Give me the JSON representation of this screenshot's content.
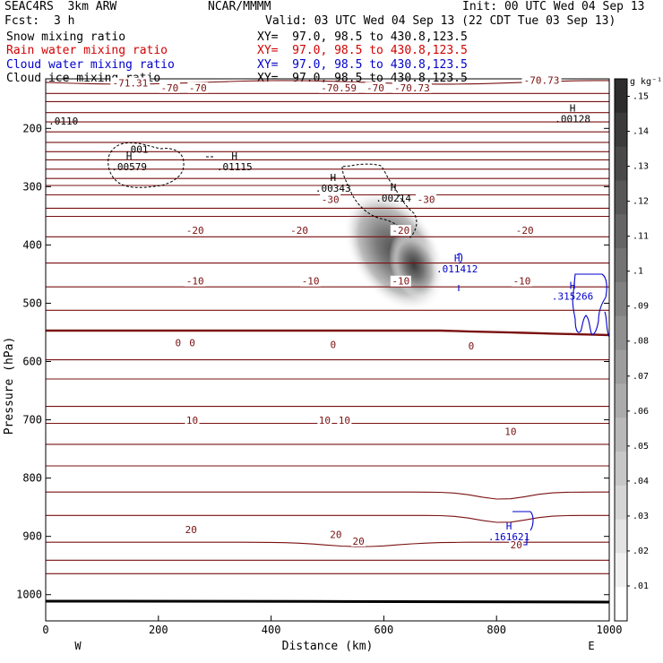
{
  "header": {
    "experiment": "SEAC4RS  3km ARW",
    "center": "NCAR/MMMM",
    "init": "Init: 00 UTC Wed 04 Sep 13",
    "fcst_label": "Fcst:",
    "fcst_value": "3 h",
    "valid": "Valid: 03 UTC Wed 04 Sep 13 (22 CDT Tue 03 Sep 13)"
  },
  "fields": [
    {
      "name": "Snow mixing ratio",
      "xy": "XY=  97.0, 98.5 to 430.8,123.5",
      "color": "#000000"
    },
    {
      "name": "Rain water mixing ratio",
      "xy": "XY=  97.0, 98.5 to 430.8,123.5",
      "color": "#d40000"
    },
    {
      "name": "Cloud water mixing ratio",
      "xy": "XY=  97.0, 98.5 to 430.8,123.5",
      "color": "#0000cc"
    },
    {
      "name": "Cloud ice mixing ratio",
      "xy": "XY=  97.0, 98.5 to 430.8,123.5",
      "color": "#000000"
    }
  ],
  "chart_data": {
    "type": "contour cross-section",
    "xlabel": "Distance (km)",
    "ylabel": "Pressure (hPa)",
    "xlim": [
      0,
      1000
    ],
    "ylim": [
      1045,
      115
    ],
    "x_ticks": [
      "0",
      "200",
      "400",
      "600",
      "800",
      "1000"
    ],
    "y_ticks": [
      "200",
      "300",
      "400",
      "500",
      "600",
      "700",
      "800",
      "900",
      "1000"
    ],
    "direction_labels": {
      "left": "W",
      "right": "E"
    },
    "colorbar": {
      "units": "g kg⁻¹",
      "tick_labels": [
        ".15",
        ".14",
        ".13",
        ".12",
        ".11",
        ".1",
        ".09",
        ".08",
        ".07",
        ".06",
        ".05",
        ".04",
        ".03",
        ".02",
        ".01"
      ],
      "range": [
        0,
        0.155
      ]
    },
    "temperature_contours": {
      "color": "#7a1010",
      "zero_color": "#7a1010",
      "labels": [
        {
          "text": "-71.31",
          "x": 150,
          "p": 122
        },
        {
          "text": "-70",
          "x": 220,
          "p": 130
        },
        {
          "text": "-70",
          "x": 270,
          "p": 130
        },
        {
          "text": "-70.59",
          "x": 520,
          "p": 130
        },
        {
          "text": "-70",
          "x": 585,
          "p": 130
        },
        {
          "text": "-70.73",
          "x": 650,
          "p": 130
        },
        {
          "text": "-70.73",
          "x": 880,
          "p": 117
        },
        {
          "text": "-30",
          "x": 505,
          "p": 322
        },
        {
          "text": "-30",
          "x": 675,
          "p": 322
        },
        {
          "text": "-20",
          "x": 265,
          "p": 375
        },
        {
          "text": "-20",
          "x": 450,
          "p": 375
        },
        {
          "text": "-20",
          "x": 630,
          "p": 375
        },
        {
          "text": "-20",
          "x": 850,
          "p": 375
        },
        {
          "text": "-10",
          "x": 265,
          "p": 462
        },
        {
          "text": "-10",
          "x": 470,
          "p": 462
        },
        {
          "text": "-10",
          "x": 630,
          "p": 462
        },
        {
          "text": "-10",
          "x": 845,
          "p": 462
        },
        {
          "text": "0",
          "x": 235,
          "p": 568
        },
        {
          "text": "0",
          "x": 260,
          "p": 568
        },
        {
          "text": "0",
          "x": 510,
          "p": 571
        },
        {
          "text": "0",
          "x": 755,
          "p": 573
        },
        {
          "text": "10",
          "x": 260,
          "p": 701
        },
        {
          "text": "10",
          "x": 495,
          "p": 701
        },
        {
          "text": "10",
          "x": 530,
          "p": 701
        },
        {
          "text": "10",
          "x": 825,
          "p": 720
        },
        {
          "text": "20",
          "x": 258,
          "p": 888
        },
        {
          "text": "20",
          "x": 515,
          "p": 897
        },
        {
          "text": "20",
          "x": 555,
          "p": 908
        },
        {
          "text": "20",
          "x": 835,
          "p": 914
        }
      ]
    },
    "extrema_labels": [
      {
        "marker": "H",
        "value": ".00579",
        "x": 148,
        "p": 258,
        "color": "#000000"
      },
      {
        "marker": "H",
        "value": ".01115",
        "x": 335,
        "p": 258,
        "color": "#000000"
      },
      {
        "marker": "H",
        "value": ".00343",
        "x": 510,
        "p": 295,
        "color": "#000000"
      },
      {
        "marker": "H",
        "value": ".00214",
        "x": 617,
        "p": 312,
        "color": "#000000"
      },
      {
        "marker": "H",
        "value": ".00128",
        "x": 935,
        "p": 176,
        "color": "#000000"
      },
      {
        "marker": "H",
        "value": ".011412",
        "x": 730,
        "p": 433,
        "color": "#0000cc"
      },
      {
        "marker": "H",
        "value": ".315266",
        "x": 935,
        "p": 480,
        "color": "#0000cc"
      },
      {
        "marker": "H",
        "value": ".161621",
        "x": 822,
        "p": 893,
        "color": "#0000cc"
      }
    ],
    "contour_labels": [
      {
        "text": ".001",
        "x": 140,
        "p": 236,
        "color": "#000000"
      },
      {
        "text": ".0110",
        "x": 5,
        "p": 187,
        "color": "#000000"
      }
    ],
    "snow_max_gkg": 0.15,
    "snow_max_location": {
      "x": 660,
      "p": 410
    }
  }
}
